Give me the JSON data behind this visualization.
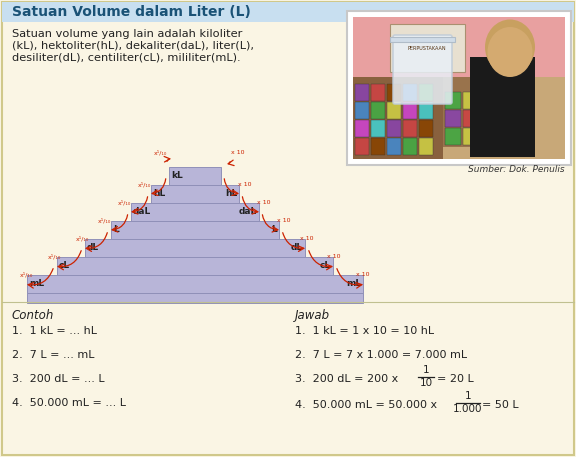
{
  "bg_color": "#faf5e4",
  "title": "Satuan Volume dalam Liter (L)",
  "title_color": "#1a5276",
  "title_bg": "#c8dff0",
  "desc_line1": "Satuan volume yang lain adalah kiloliter",
  "desc_line2": "(kL), hektoliter(hL), dekaliter(daL), liter(L),",
  "desc_line3": "desiliter(dL), centiliter(cL), mililiter(mL).",
  "stair_color": "#b8b5d8",
  "stair_edge": "#9090b8",
  "labels_left": [
    "kL",
    "hL",
    "daL",
    "L",
    "dL",
    "cL",
    "mL"
  ],
  "labels_right": [
    "hL",
    "daL",
    "L",
    "dL",
    "cL",
    "mL"
  ],
  "source_text": "Sumber: Dok. Penulis",
  "contoh_title": "Contoh",
  "jawab_title": "Jawab",
  "arrow_color": "#cc2200",
  "photo_bg": "#d4b090",
  "photo_border": "#e8d8b0"
}
